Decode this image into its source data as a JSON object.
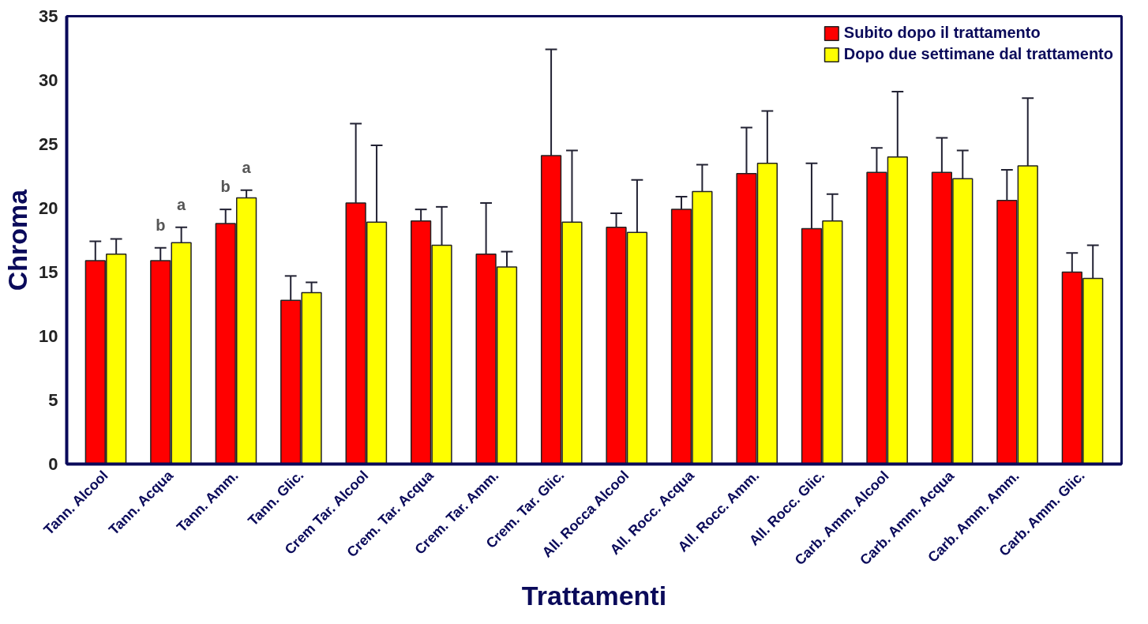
{
  "chart_data": {
    "type": "bar",
    "xlabel": "Trattamenti",
    "ylabel": "Chroma",
    "categories": [
      "Tann. Alcool",
      "Tann. Acqua",
      "Tann. Amm.",
      "Tann. Glic.",
      "Crem Tar. Alcool",
      "Crem. Tar. Acqua",
      "Crem. Tar. Amm.",
      "Crem. Tar. Glic.",
      "All. Rocca Alcool",
      "All. Rocc. Acqua",
      "All. Rocc. Amm.",
      "All. Rocc. Glic.",
      "Carb. Amm. Alcool",
      "Carb. Amm. Acqua",
      "Carb. Amm. Amm.",
      "Carb. Amm. Glic."
    ],
    "series": [
      {
        "name": "Subito dopo il trattamento",
        "color": "#ff0000",
        "values": [
          15.9,
          15.9,
          18.8,
          12.8,
          20.4,
          19.0,
          16.4,
          24.1,
          18.5,
          19.9,
          22.7,
          18.4,
          22.8,
          22.8,
          20.6,
          15.0
        ],
        "value_labels": [
          null,
          "b",
          "b",
          null,
          null,
          null,
          null,
          null,
          null,
          null,
          null,
          null,
          null,
          null,
          null,
          null
        ],
        "errors": [
          [
            15.9,
            17.4
          ],
          [
            15.9,
            16.9
          ],
          [
            18.8,
            19.9
          ],
          [
            12.8,
            14.7
          ],
          [
            20.4,
            26.6
          ],
          [
            19.0,
            19.9
          ],
          [
            16.4,
            20.4
          ],
          [
            24.1,
            32.4
          ],
          [
            18.5,
            19.6
          ],
          [
            19.9,
            20.9
          ],
          [
            22.7,
            26.3
          ],
          [
            18.4,
            23.5
          ],
          [
            22.8,
            24.7
          ],
          [
            22.8,
            25.5
          ],
          [
            20.6,
            23.0
          ],
          [
            15.0,
            16.5
          ]
        ]
      },
      {
        "name": "Dopo due settimane dal trattamento",
        "color": "#ffff00",
        "values": [
          16.4,
          17.3,
          20.8,
          13.4,
          18.9,
          17.1,
          15.4,
          18.9,
          18.1,
          21.3,
          23.5,
          19.0,
          24.0,
          22.3,
          23.3,
          14.5
        ],
        "value_labels": [
          null,
          "a",
          "a",
          null,
          null,
          null,
          null,
          null,
          null,
          null,
          null,
          null,
          null,
          null,
          null,
          null
        ],
        "errors": [
          [
            16.4,
            17.6
          ],
          [
            17.3,
            18.5
          ],
          [
            20.8,
            21.4
          ],
          [
            13.4,
            14.2
          ],
          [
            18.9,
            24.9
          ],
          [
            17.1,
            20.1
          ],
          [
            15.4,
            16.6
          ],
          [
            18.9,
            24.5
          ],
          [
            18.1,
            22.2
          ],
          [
            21.3,
            23.4
          ],
          [
            23.5,
            27.6
          ],
          [
            19.0,
            21.1
          ],
          [
            24.0,
            29.1
          ],
          [
            22.3,
            24.5
          ],
          [
            23.3,
            28.6
          ],
          [
            14.5,
            17.1
          ]
        ]
      }
    ],
    "ylim": [
      0,
      35
    ],
    "yticks": [
      0,
      5,
      10,
      15,
      20,
      25,
      30,
      35
    ],
    "grid": false,
    "legend": "top right"
  }
}
